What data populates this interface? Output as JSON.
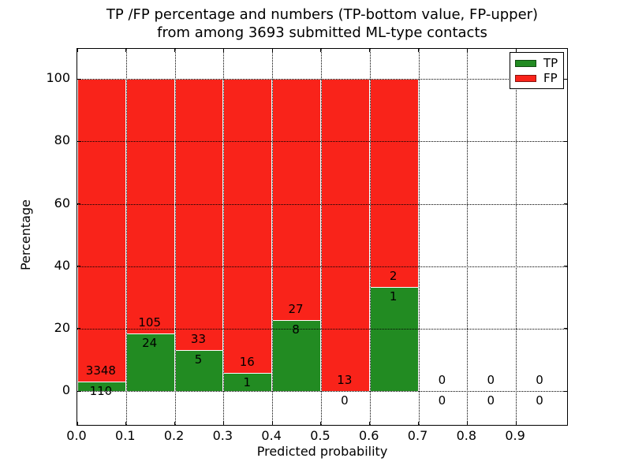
{
  "chart_data": {
    "type": "bar",
    "stacked": true,
    "title_line1": "TP /FP percentage and numbers (TP-bottom value, FP-upper)",
    "title_line2": "from among 3693 submitted ML-type contacts",
    "xlabel": "Predicted probability",
    "ylabel": "Percentage",
    "total_contacts": 3693,
    "x_tick_labels": [
      "0.0",
      "0.1",
      "0.2",
      "0.3",
      "0.4",
      "0.5",
      "0.6",
      "0.7",
      "0.8",
      "0.9"
    ],
    "x_tick_values": [
      0.0,
      0.1,
      0.2,
      0.3,
      0.4,
      0.5,
      0.6,
      0.7,
      0.8,
      0.9
    ],
    "y_tick_labels": [
      "0",
      "20",
      "40",
      "60",
      "80",
      "100"
    ],
    "y_tick_values": [
      0,
      20,
      40,
      60,
      80,
      100
    ],
    "xlim": [
      0,
      1.005
    ],
    "ylim": [
      -10.8,
      109.6
    ],
    "bin_width": 0.1,
    "grid": "dotted",
    "legend_position": "upper-right",
    "colors": {
      "tp": "#228b22",
      "fp": "#f9231a",
      "bar_edge": "#ffffff"
    },
    "legend": [
      {
        "label": "TP",
        "color_key": "tp"
      },
      {
        "label": "FP",
        "color_key": "fp"
      }
    ],
    "bins": [
      {
        "x0": 0.0,
        "tp_count": "110",
        "fp_count": "3348",
        "tp_pct": 3.18,
        "fp_pct": 96.82
      },
      {
        "x0": 0.1,
        "tp_count": "24",
        "fp_count": "105",
        "tp_pct": 18.6,
        "fp_pct": 81.4
      },
      {
        "x0": 0.2,
        "tp_count": "5",
        "fp_count": "33",
        "tp_pct": 13.16,
        "fp_pct": 86.84
      },
      {
        "x0": 0.3,
        "tp_count": "1",
        "fp_count": "16",
        "tp_pct": 5.88,
        "fp_pct": 94.12
      },
      {
        "x0": 0.4,
        "tp_count": "8",
        "fp_count": "27",
        "tp_pct": 22.86,
        "fp_pct": 77.14
      },
      {
        "x0": 0.5,
        "tp_count": "0",
        "fp_count": "13",
        "tp_pct": 0,
        "fp_pct": 100
      },
      {
        "x0": 0.6,
        "tp_count": "1",
        "fp_count": "2",
        "tp_pct": 33.33,
        "fp_pct": 66.67
      },
      {
        "x0": 0.7,
        "tp_count": "0",
        "fp_count": "0",
        "tp_pct": 0,
        "fp_pct": 0
      },
      {
        "x0": 0.8,
        "tp_count": "0",
        "fp_count": "0",
        "tp_pct": 0,
        "fp_pct": 0
      },
      {
        "x0": 0.9,
        "tp_count": "0",
        "fp_count": "0",
        "tp_pct": 0,
        "fp_pct": 0
      }
    ]
  }
}
